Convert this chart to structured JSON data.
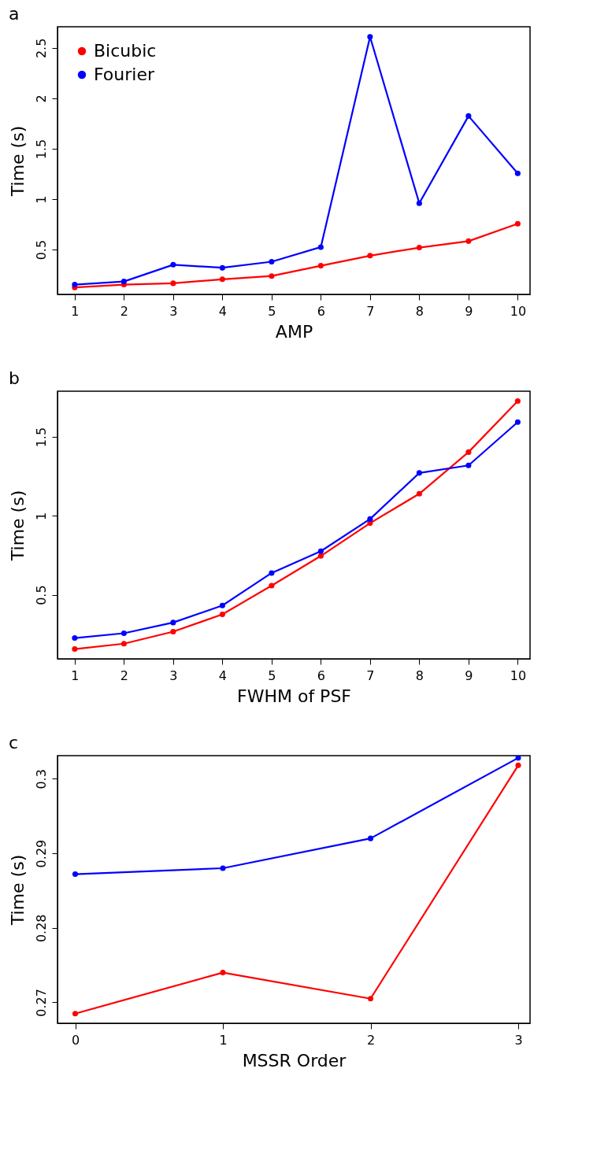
{
  "chart_data": [
    {
      "type": "line",
      "title": "a",
      "xlabel": "AMP",
      "ylabel": "Time (s)",
      "x": [
        1,
        2,
        3,
        4,
        5,
        6,
        7,
        8,
        9,
        10
      ],
      "xlim": [
        0.65,
        10.25
      ],
      "xticks": [
        1,
        2,
        3,
        4,
        5,
        6,
        7,
        8,
        9,
        10
      ],
      "ylim": [
        0.056,
        2.71
      ],
      "yticks": [
        0.5,
        1,
        1.5,
        2,
        2.5
      ],
      "grid": false,
      "legend": "top left",
      "marker": "circle",
      "line_style": "solid",
      "series": [
        {
          "name": "Bicubic",
          "color": "#ff0000",
          "values": [
            0.125,
            0.153,
            0.166,
            0.206,
            0.238,
            0.34,
            0.44,
            0.52,
            0.584,
            0.756
          ]
        },
        {
          "name": "Fourier",
          "color": "#0000ff",
          "values": [
            0.153,
            0.184,
            0.35,
            0.32,
            0.38,
            0.525,
            2.61,
            0.96,
            1.825,
            1.256
          ]
        }
      ]
    },
    {
      "type": "line",
      "title": "b",
      "xlabel": "FWHM of PSF",
      "ylabel": "Time (s)",
      "x": [
        1,
        2,
        3,
        4,
        5,
        6,
        7,
        8,
        9,
        10
      ],
      "xlim": [
        0.65,
        10.25
      ],
      "xticks": [
        1,
        2,
        3,
        4,
        5,
        6,
        7,
        8,
        9,
        10
      ],
      "ylim": [
        0.094,
        1.79
      ],
      "yticks": [
        0.5,
        1,
        1.5
      ],
      "grid": false,
      "marker": "circle",
      "line_style": "solid",
      "series": [
        {
          "color": "#ff0000",
          "values": [
            0.156,
            0.19,
            0.266,
            0.376,
            0.558,
            0.746,
            0.954,
            1.14,
            1.404,
            1.728
          ]
        },
        {
          "color": "#0000ff",
          "values": [
            0.226,
            0.256,
            0.324,
            0.432,
            0.638,
            0.776,
            0.98,
            1.272,
            1.32,
            1.594
          ]
        }
      ]
    },
    {
      "type": "line",
      "title": "c",
      "xlabel": "MSSR Order",
      "ylabel": "Time (s)",
      "x": [
        0,
        1,
        2,
        3
      ],
      "xlim": [
        -0.12,
        3.08
      ],
      "xticks": [
        0,
        1,
        2,
        3
      ],
      "ylim": [
        0.2672,
        0.3031
      ],
      "yticks": [
        0.27,
        0.28,
        0.29,
        0.3
      ],
      "grid": false,
      "marker": "circle",
      "line_style": "solid",
      "series": [
        {
          "color": "#ff0000",
          "values": [
            0.2685,
            0.274,
            0.2705,
            0.3018
          ]
        },
        {
          "color": "#0000ff",
          "values": [
            0.2872,
            0.288,
            0.292,
            0.3028
          ]
        }
      ]
    }
  ]
}
